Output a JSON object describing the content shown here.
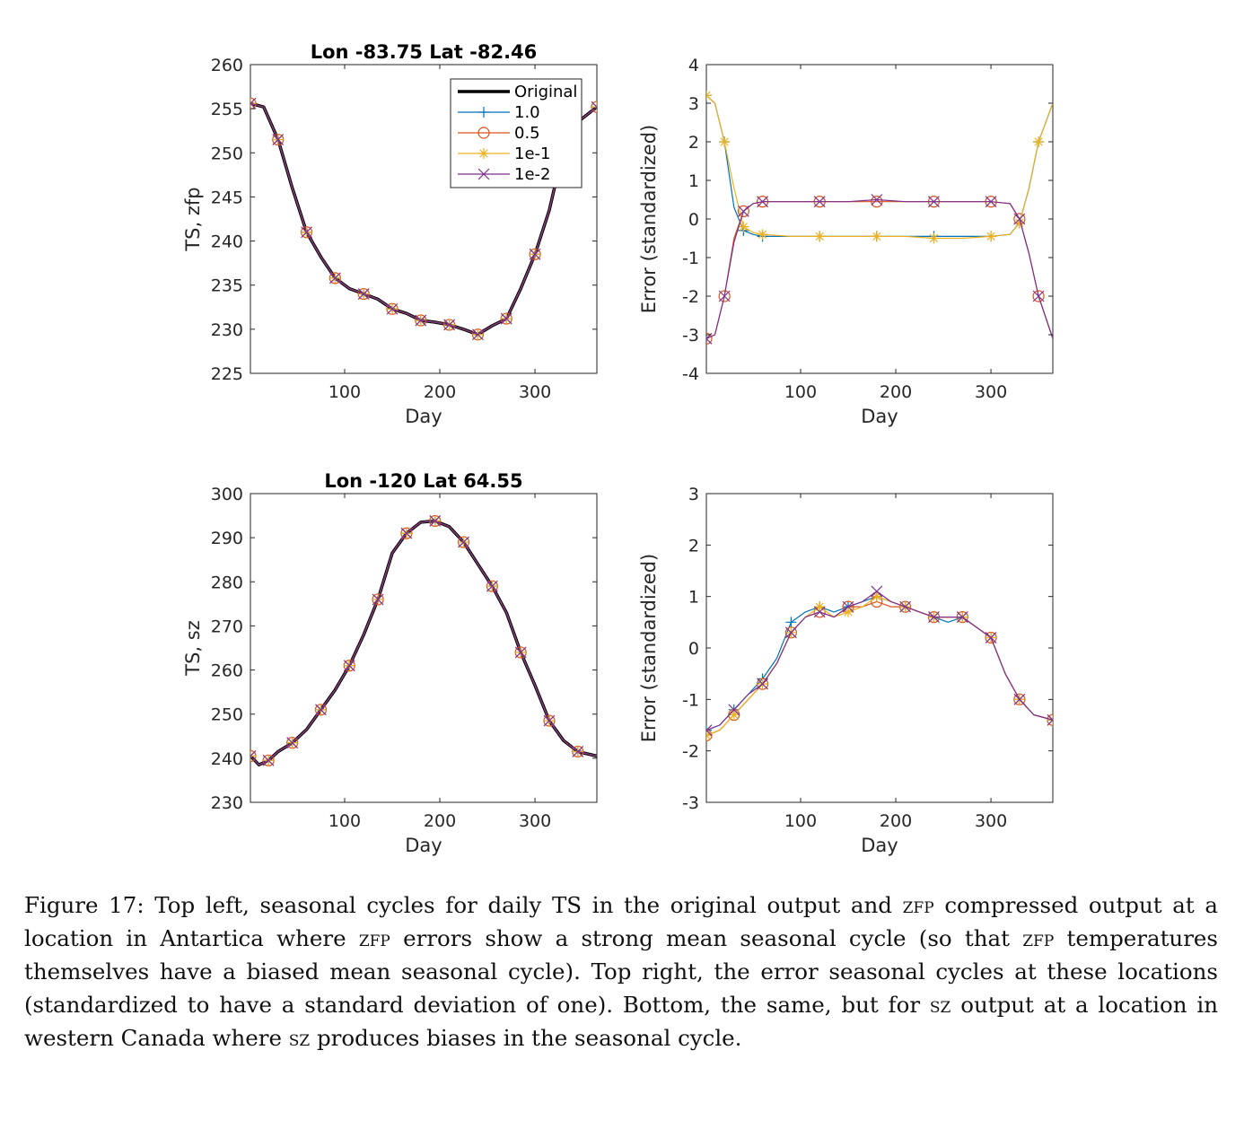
{
  "figure": {
    "panels": [
      {
        "id": "top-left",
        "title": "Lon -83.75 Lat -82.46",
        "xlabel": "Day",
        "ylabel": "TS, zfp"
      },
      {
        "id": "top-right",
        "title": "",
        "xlabel": "Day",
        "ylabel": "Error (standardized)"
      },
      {
        "id": "bottom-left",
        "title": "Lon -120 Lat 64.55",
        "xlabel": "Day",
        "ylabel": "TS, sz"
      },
      {
        "id": "bottom-right",
        "title": "",
        "xlabel": "Day",
        "ylabel": "Error (standardized)"
      }
    ],
    "legend": [
      "Original",
      "1.0",
      "0.5",
      "1e-1",
      "1e-2"
    ]
  },
  "colors": {
    "Original": "#000000",
    "1.0": "#0072BD",
    "0.5": "#D95319",
    "1e-1": "#EDB120",
    "1e-2": "#7E2F8E"
  },
  "chart_data": [
    {
      "type": "line",
      "title": "Lon -83.75 Lat -82.46",
      "xlabel": "Day",
      "ylabel": "TS, zfp",
      "xlim": [
        1,
        365
      ],
      "ylim": [
        225,
        260
      ],
      "xticks": [
        100,
        200,
        300
      ],
      "yticks": [
        225,
        230,
        235,
        240,
        245,
        250,
        255,
        260
      ],
      "legend_position": "top-right",
      "x": [
        1,
        15,
        30,
        45,
        60,
        75,
        90,
        105,
        120,
        135,
        150,
        165,
        180,
        195,
        210,
        225,
        240,
        255,
        270,
        285,
        300,
        315,
        330,
        345,
        365
      ],
      "series": [
        {
          "name": "Original",
          "values": [
            255.6,
            255.2,
            251.5,
            246.0,
            241.0,
            238.2,
            235.8,
            234.6,
            234.0,
            233.4,
            232.3,
            231.8,
            231.0,
            230.8,
            230.5,
            230.0,
            229.4,
            230.4,
            231.2,
            234.6,
            238.5,
            243.5,
            250.5,
            253.5,
            255.2
          ]
        },
        {
          "name": "1.0",
          "values": [
            255.6,
            255.2,
            251.5,
            246.0,
            241.0,
            238.2,
            235.8,
            234.6,
            234.0,
            233.4,
            232.3,
            231.8,
            231.0,
            230.8,
            230.5,
            230.0,
            229.4,
            230.4,
            231.2,
            234.6,
            238.5,
            243.5,
            250.5,
            253.5,
            255.2
          ]
        },
        {
          "name": "0.5",
          "values": [
            255.6,
            255.2,
            251.5,
            246.0,
            241.0,
            238.2,
            235.8,
            234.6,
            234.0,
            233.4,
            232.3,
            231.8,
            231.0,
            230.8,
            230.5,
            230.0,
            229.4,
            230.4,
            231.2,
            234.6,
            238.5,
            243.5,
            250.5,
            253.5,
            255.2
          ]
        },
        {
          "name": "1e-1",
          "values": [
            255.6,
            255.2,
            251.5,
            246.0,
            241.0,
            238.2,
            235.8,
            234.6,
            234.0,
            233.4,
            232.3,
            231.8,
            231.0,
            230.8,
            230.5,
            230.0,
            229.4,
            230.4,
            231.2,
            234.6,
            238.5,
            243.5,
            250.5,
            253.5,
            255.2
          ]
        },
        {
          "name": "1e-2",
          "values": [
            255.6,
            255.2,
            251.5,
            246.0,
            241.0,
            238.2,
            235.8,
            234.6,
            234.0,
            233.4,
            232.3,
            231.8,
            231.0,
            230.8,
            230.5,
            230.0,
            229.4,
            230.4,
            231.2,
            234.6,
            238.5,
            243.5,
            250.5,
            253.5,
            255.2
          ]
        }
      ]
    },
    {
      "type": "line",
      "title": "",
      "xlabel": "Day",
      "ylabel": "Error (standardized)",
      "xlim": [
        1,
        365
      ],
      "ylim": [
        -4,
        4
      ],
      "xticks": [
        100,
        200,
        300
      ],
      "yticks": [
        -4,
        -3,
        -2,
        -1,
        0,
        1,
        2,
        3,
        4
      ],
      "x": [
        1,
        10,
        20,
        30,
        40,
        50,
        60,
        90,
        120,
        150,
        180,
        210,
        240,
        270,
        300,
        320,
        330,
        340,
        350,
        365
      ],
      "series": [
        {
          "name": "1.0",
          "values": [
            3.2,
            3.0,
            2.0,
            0.3,
            -0.3,
            -0.4,
            -0.45,
            -0.45,
            -0.45,
            -0.45,
            -0.45,
            -0.45,
            -0.45,
            -0.45,
            -0.45,
            -0.4,
            -0.1,
            0.8,
            2.0,
            3.0
          ]
        },
        {
          "name": "0.5",
          "values": [
            -3.1,
            -3.0,
            -2.0,
            -0.5,
            0.2,
            0.4,
            0.45,
            0.45,
            0.45,
            0.45,
            0.45,
            0.45,
            0.45,
            0.45,
            0.45,
            0.4,
            0.0,
            -0.9,
            -2.0,
            -3.1
          ]
        },
        {
          "name": "1e-1",
          "values": [
            3.2,
            3.0,
            2.0,
            0.8,
            -0.2,
            -0.35,
            -0.4,
            -0.45,
            -0.45,
            -0.45,
            -0.45,
            -0.45,
            -0.5,
            -0.5,
            -0.45,
            -0.4,
            -0.1,
            0.8,
            2.0,
            3.0
          ]
        },
        {
          "name": "1e-2",
          "values": [
            -3.1,
            -3.0,
            -2.0,
            -0.6,
            0.2,
            0.4,
            0.45,
            0.45,
            0.45,
            0.45,
            0.5,
            0.45,
            0.45,
            0.45,
            0.45,
            0.4,
            0.0,
            -0.9,
            -2.0,
            -3.1
          ]
        }
      ]
    },
    {
      "type": "line",
      "title": "Lon -120 Lat 64.55",
      "xlabel": "Day",
      "ylabel": "TS, sz",
      "xlim": [
        1,
        365
      ],
      "ylim": [
        230,
        300
      ],
      "xticks": [
        100,
        200,
        300
      ],
      "yticks": [
        230,
        240,
        250,
        260,
        270,
        280,
        290,
        300
      ],
      "x": [
        1,
        10,
        20,
        30,
        45,
        60,
        75,
        90,
        105,
        120,
        135,
        150,
        165,
        180,
        195,
        210,
        225,
        240,
        255,
        270,
        285,
        300,
        315,
        330,
        345,
        365
      ],
      "series": [
        {
          "name": "Original",
          "values": [
            240.5,
            238.5,
            239.5,
            241.5,
            243.5,
            246.5,
            251.0,
            255.5,
            261.0,
            268.0,
            276.0,
            286.5,
            291.0,
            293.5,
            293.8,
            292.5,
            289.0,
            284.0,
            279.0,
            273.0,
            264.0,
            256.5,
            248.5,
            244.0,
            241.5,
            240.5
          ]
        },
        {
          "name": "1.0",
          "values": [
            240.5,
            238.5,
            239.5,
            241.5,
            243.5,
            246.5,
            251.0,
            255.5,
            261.0,
            268.0,
            276.0,
            286.5,
            291.0,
            293.5,
            293.8,
            292.5,
            289.0,
            284.0,
            279.0,
            273.0,
            264.0,
            256.5,
            248.5,
            244.0,
            241.5,
            240.5
          ]
        },
        {
          "name": "0.5",
          "values": [
            240.5,
            238.5,
            239.5,
            241.5,
            243.5,
            246.5,
            251.0,
            255.5,
            261.0,
            268.0,
            276.0,
            286.5,
            291.0,
            293.5,
            293.8,
            292.5,
            289.0,
            284.0,
            279.0,
            273.0,
            264.0,
            256.5,
            248.5,
            244.0,
            241.5,
            240.5
          ]
        },
        {
          "name": "1e-1",
          "values": [
            240.5,
            238.5,
            239.5,
            241.5,
            243.5,
            246.5,
            251.0,
            255.5,
            261.0,
            268.0,
            276.0,
            286.5,
            291.0,
            293.5,
            293.8,
            292.5,
            289.0,
            284.0,
            279.0,
            273.0,
            264.0,
            256.5,
            248.5,
            244.0,
            241.5,
            240.5
          ]
        },
        {
          "name": "1e-2",
          "values": [
            240.5,
            238.5,
            239.5,
            241.5,
            243.5,
            246.5,
            251.0,
            255.5,
            261.0,
            268.0,
            276.0,
            286.5,
            291.0,
            293.5,
            293.8,
            292.5,
            289.0,
            284.0,
            279.0,
            273.0,
            264.0,
            256.5,
            248.5,
            244.0,
            241.5,
            240.5
          ]
        }
      ]
    },
    {
      "type": "line",
      "title": "",
      "xlabel": "Day",
      "ylabel": "Error (standardized)",
      "xlim": [
        1,
        365
      ],
      "ylim": [
        -3,
        3
      ],
      "xticks": [
        100,
        200,
        300
      ],
      "yticks": [
        -3,
        -2,
        -1,
        0,
        1,
        2,
        3
      ],
      "x": [
        1,
        15,
        30,
        45,
        60,
        75,
        90,
        105,
        120,
        135,
        150,
        165,
        180,
        195,
        210,
        225,
        240,
        255,
        270,
        285,
        300,
        315,
        330,
        345,
        365
      ],
      "series": [
        {
          "name": "1.0",
          "values": [
            -1.6,
            -1.5,
            -1.2,
            -0.9,
            -0.6,
            -0.2,
            0.5,
            0.7,
            0.8,
            0.7,
            0.8,
            0.9,
            1.0,
            0.9,
            0.8,
            0.7,
            0.6,
            0.5,
            0.6,
            0.4,
            0.2,
            -0.5,
            -1.0,
            -1.3,
            -1.4
          ]
        },
        {
          "name": "0.5",
          "values": [
            -1.7,
            -1.6,
            -1.3,
            -1.0,
            -0.7,
            -0.3,
            0.3,
            0.6,
            0.7,
            0.6,
            0.8,
            0.8,
            0.9,
            0.8,
            0.8,
            0.7,
            0.6,
            0.6,
            0.6,
            0.4,
            0.2,
            -0.5,
            -1.0,
            -1.3,
            -1.4
          ]
        },
        {
          "name": "1e-1",
          "values": [
            -1.7,
            -1.6,
            -1.3,
            -1.0,
            -0.7,
            -0.3,
            0.3,
            0.6,
            0.8,
            0.6,
            0.7,
            0.8,
            1.0,
            0.9,
            0.8,
            0.7,
            0.6,
            0.6,
            0.6,
            0.4,
            0.2,
            -0.5,
            -1.0,
            -1.3,
            -1.4
          ]
        },
        {
          "name": "1e-2",
          "values": [
            -1.6,
            -1.5,
            -1.2,
            -0.9,
            -0.7,
            -0.3,
            0.3,
            0.6,
            0.7,
            0.6,
            0.8,
            0.9,
            1.1,
            0.9,
            0.8,
            0.7,
            0.6,
            0.6,
            0.6,
            0.4,
            0.2,
            -0.5,
            -1.0,
            -1.3,
            -1.4
          ]
        }
      ]
    }
  ],
  "caption": {
    "label": "Figure 17:",
    "parts": [
      "Top left, seasonal cycles for daily TS in the original output and ",
      "zfp",
      " compressed output at a location in Antartica where ",
      "zfp",
      " errors show a strong mean seasonal cycle (so that ",
      "zfp",
      " temperatures themselves have a biased mean seasonal cycle). Top right, the error seasonal cycles at these locations (standardized to have a standard deviation of one). Bottom, the same, but for ",
      "sz",
      " output at a location in western Canada where ",
      "sz",
      " produces biases in the seasonal cycle."
    ]
  }
}
